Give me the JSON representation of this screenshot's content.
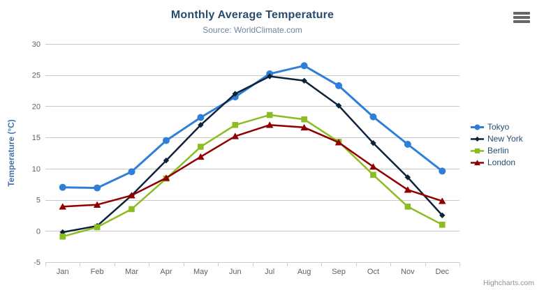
{
  "header": {
    "title": "Monthly Average Temperature",
    "subtitle": "Source: WorldClimate.com"
  },
  "credits": {
    "label": "Highcharts.com"
  },
  "icons": {
    "export_menu": "hamburger-menu-icon"
  },
  "style": {
    "title_color": "#274b6d",
    "subtitle_color": "#6d869f",
    "axis_title_color": "#4572a7",
    "tick_label_color": "#606060",
    "grid_color": "#c8c8c8",
    "axis_line_color": "#c0d0e0",
    "legend_text_color": "#274b6d",
    "credit_color": "#909090",
    "background": "#ffffff"
  },
  "chart_data": {
    "type": "line",
    "title": "Monthly Average Temperature",
    "subtitle": "Source: WorldClimate.com",
    "categories": [
      "Jan",
      "Feb",
      "Mar",
      "Apr",
      "May",
      "Jun",
      "Jul",
      "Aug",
      "Sep",
      "Oct",
      "Nov",
      "Dec"
    ],
    "xlabel": "",
    "ylabel": "Temperature (°C)",
    "ylim": [
      -5,
      30
    ],
    "yticks": [
      -5,
      0,
      5,
      10,
      15,
      20,
      25,
      30
    ],
    "grid": true,
    "legend_position": "right",
    "series": [
      {
        "name": "Tokyo",
        "color": "#2f7ed8",
        "marker": "circle",
        "line_width": 3,
        "values": [
          7.0,
          6.9,
          9.5,
          14.5,
          18.2,
          21.5,
          25.2,
          26.5,
          23.3,
          18.3,
          13.9,
          9.6
        ]
      },
      {
        "name": "New York",
        "color": "#0d233a",
        "marker": "diamond",
        "line_width": 2.5,
        "values": [
          -0.2,
          0.8,
          5.7,
          11.3,
          17.0,
          22.0,
          24.8,
          24.1,
          20.1,
          14.1,
          8.6,
          2.5
        ]
      },
      {
        "name": "Berlin",
        "color": "#8bbc21",
        "marker": "square",
        "line_width": 2.5,
        "values": [
          -0.9,
          0.6,
          3.5,
          8.4,
          13.5,
          17.0,
          18.6,
          17.9,
          14.3,
          9.0,
          3.9,
          1.0
        ]
      },
      {
        "name": "London",
        "color": "#910000",
        "marker": "triangle",
        "line_width": 2.5,
        "values": [
          3.9,
          4.2,
          5.7,
          8.5,
          11.9,
          15.2,
          17.0,
          16.6,
          14.2,
          10.3,
          6.6,
          4.8
        ]
      }
    ]
  }
}
